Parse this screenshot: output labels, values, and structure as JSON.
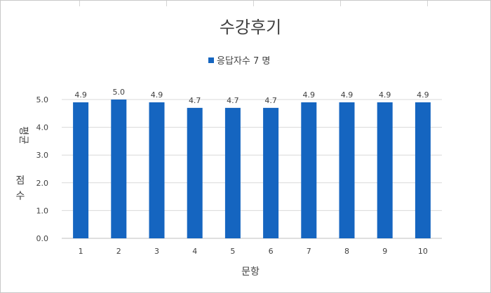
{
  "chart_data": {
    "type": "bar",
    "title": "수강후기",
    "series": [
      {
        "name": "응답자수 7 명",
        "color": "#1565c0",
        "values": [
          4.9,
          5.0,
          4.9,
          4.7,
          4.7,
          4.7,
          4.9,
          4.9,
          4.9,
          4.9
        ]
      }
    ],
    "categories": [
      "1",
      "2",
      "3",
      "4",
      "5",
      "6",
      "7",
      "8",
      "9",
      "10"
    ],
    "data_labels": [
      "4.9",
      "5.0",
      "4.9",
      "4.7",
      "4.7",
      "4.7",
      "4.9",
      "4.9",
      "4.9",
      "4.9"
    ],
    "yticks": [
      "0.0",
      "1.0",
      "2.0",
      "3.0",
      "4.0",
      "5.0"
    ],
    "xlabel": "문항",
    "ylabel": "평균 점수",
    "ylim": [
      0,
      5
    ],
    "grid": true,
    "legend_position": "top"
  }
}
